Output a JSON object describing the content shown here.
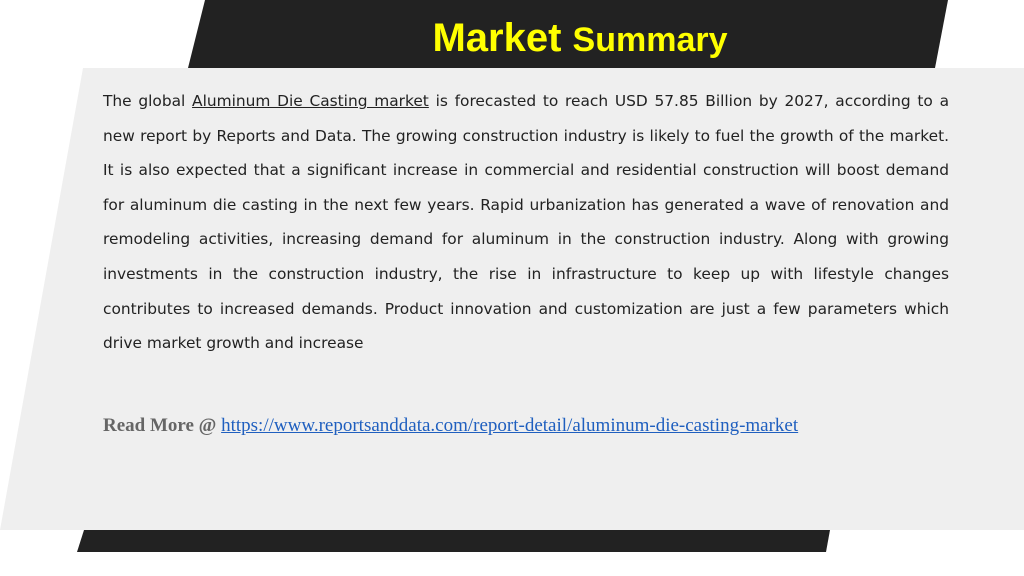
{
  "slide": {
    "title_part1": "Market",
    "title_part2": "Summary",
    "paragraph": {
      "intro": "The global ",
      "link_text": "Aluminum Die Casting market",
      "rest": " is forecasted to reach USD 57.85 Billion by 2027, according to a new report by Reports and Data. The growing construction industry is likely to fuel the growth of the market. It is also expected that a significant increase in commercial and residential construction will boost demand for aluminum die casting in the next few years. Rapid urbanization has generated a wave of renovation and remodeling activities, increasing demand for aluminum in the construction industry. Along with growing investments in the construction industry, the rise in infrastructure to keep up with lifestyle changes contributes to increased demands. Product innovation and customization are just a few parameters which drive market growth and increase"
    },
    "read_more": {
      "label": "Read More @ ",
      "url_text": "https://www.reportsanddata.com/report-detail/aluminum-die-casting-market"
    }
  },
  "colors": {
    "banner": "#222222",
    "panel": "#efefef",
    "title": "#ffff00",
    "link": "#1f5fbf"
  }
}
